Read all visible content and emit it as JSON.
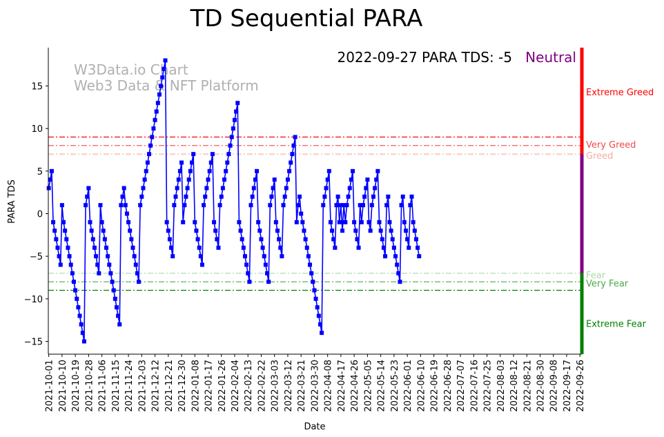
{
  "chart_data": {
    "type": "line",
    "title": "TD Sequential PARA",
    "xlabel": "Date",
    "ylabel": "PARA TDS",
    "ylim": [
      -16.5,
      19.5
    ],
    "yticks": [
      -15,
      -10,
      -5,
      0,
      5,
      10,
      15
    ],
    "x_start": "2021-10-01",
    "x_end": "2022-09-27",
    "xticks": [
      "2021-10-01",
      "2021-10-10",
      "2021-10-19",
      "2021-10-28",
      "2021-11-06",
      "2021-11-15",
      "2021-11-24",
      "2021-12-03",
      "2021-12-12",
      "2021-12-21",
      "2021-12-30",
      "2022-01-08",
      "2022-01-17",
      "2022-01-26",
      "2022-02-04",
      "2022-02-13",
      "2022-02-22",
      "2022-03-03",
      "2022-03-12",
      "2022-03-21",
      "2022-03-30",
      "2022-04-08",
      "2022-04-17",
      "2022-04-26",
      "2022-05-05",
      "2022-05-14",
      "2022-05-23",
      "2022-06-01",
      "2022-06-10",
      "2022-06-19",
      "2022-06-28",
      "2022-07-07",
      "2022-07-16",
      "2022-07-25",
      "2022-08-03",
      "2022-08-12",
      "2022-08-21",
      "2022-08-30",
      "2022-09-08",
      "2022-09-17",
      "2022-09-26"
    ],
    "series": [
      {
        "name": "PARA TDS",
        "color": "#0000ff",
        "values": [
          3,
          4,
          5,
          -1,
          -2,
          -3,
          -4,
          -5,
          -6,
          1,
          -1,
          -2,
          -3,
          -4,
          -5,
          -6,
          -7,
          -8,
          -9,
          -10,
          -11,
          -12,
          -13,
          -14,
          -15,
          1,
          2,
          3,
          -1,
          -2,
          -3,
          -4,
          -5,
          -6,
          -7,
          1,
          -1,
          -2,
          -3,
          -4,
          -5,
          -6,
          -7,
          -8,
          -9,
          -10,
          -11,
          -12,
          -13,
          1,
          2,
          3,
          1,
          0,
          -1,
          -2,
          -3,
          -4,
          -5,
          -6,
          -7,
          -8,
          1,
          2,
          3,
          4,
          5,
          6,
          7,
          8,
          9,
          10,
          11,
          12,
          13,
          14,
          15,
          16,
          17,
          18,
          -1,
          -2,
          -3,
          -4,
          -5,
          1,
          2,
          3,
          4,
          5,
          6,
          -1,
          1,
          2,
          3,
          4,
          5,
          6,
          7,
          -1,
          -2,
          -3,
          -4,
          -5,
          -6,
          1,
          2,
          3,
          4,
          5,
          6,
          7,
          -1,
          -2,
          -3,
          -4,
          1,
          2,
          3,
          4,
          5,
          6,
          7,
          8,
          9,
          10,
          11,
          12,
          13,
          -1,
          -2,
          -3,
          -4,
          -5,
          -6,
          -7,
          -8,
          1,
          2,
          3,
          4,
          5,
          -1,
          -2,
          -3,
          -4,
          -5,
          -6,
          -7,
          -8,
          1,
          2,
          3,
          4,
          -1,
          -2,
          -3,
          -4,
          -5,
          1,
          2,
          3,
          4,
          5,
          6,
          7,
          8,
          9,
          -1,
          1,
          2,
          0,
          -1,
          -2,
          -3,
          -4,
          -5,
          -6,
          -7,
          -8,
          -9,
          -10,
          -11,
          -12,
          -13,
          -14,
          1,
          2,
          3,
          4,
          5,
          -1,
          -2,
          -3,
          -4,
          1,
          2,
          -1,
          1,
          -2,
          1,
          -1,
          1,
          2,
          3,
          4,
          5,
          -1,
          -2,
          -3,
          -4,
          1,
          -1,
          1,
          2,
          3,
          4,
          -1,
          -2,
          1,
          2,
          3,
          4,
          5,
          -1,
          -2,
          -3,
          -4,
          -5,
          1,
          2,
          -1,
          -2,
          -3,
          -4,
          -5,
          -6,
          -7,
          -8,
          1,
          2,
          -1,
          -2,
          -3,
          -4,
          1,
          2,
          -1,
          -2,
          -3,
          -4,
          -5
        ]
      }
    ],
    "thresholds": [
      {
        "label": "Extreme Greed",
        "value": 9,
        "color": "#ff0000"
      },
      {
        "label": "Very Greed",
        "value": 8,
        "color": "#f14a4a"
      },
      {
        "label": "Greed",
        "value": 7,
        "color": "#f7a9a3"
      },
      {
        "label": "Fear",
        "value": -7,
        "color": "#a8d8a8"
      },
      {
        "label": "Very Fear",
        "value": -8,
        "color": "#4aa84a"
      },
      {
        "label": "Extreme Fear",
        "value": -9,
        "color": "#008000"
      }
    ],
    "side_bar": {
      "greed_color": "#ff0000",
      "neutral_color": "#800080",
      "fear_color": "#008000"
    },
    "annotation_text": "2022-09-27 PARA TDS: -5",
    "status_text": "Neutral",
    "status_color": "#800080",
    "watermark_line1": "W3Data.io Chart",
    "watermark_line2": "Web3 Data & NFT Platform"
  }
}
